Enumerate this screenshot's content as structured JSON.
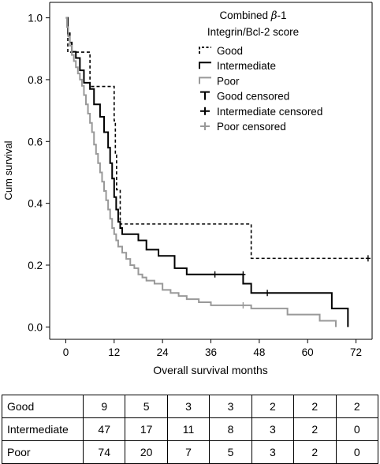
{
  "chart_data": {
    "type": "line",
    "subtype": "kaplan-meier step",
    "xlabel": "Overall survival months",
    "ylabel": "Cum survival",
    "xlim": [
      -4,
      76
    ],
    "ylim": [
      -0.04,
      1.05
    ],
    "xticks": [
      0,
      12,
      24,
      36,
      48,
      60,
      72
    ],
    "yticks": [
      0.0,
      0.2,
      0.4,
      0.6,
      0.8,
      1.0
    ],
    "ytick_labels": [
      "0.0",
      "0.2",
      "0.4",
      "0.6",
      "0.8",
      "1.0"
    ],
    "grid": false,
    "legend": {
      "placement": "top-right",
      "title": "Combined β-1 Integrin/Bcl-2 score",
      "title_prefix": "Combined ",
      "title_symbol": "β",
      "title_suffix": "-1",
      "title_line2": "Integrin/Bcl-2 score",
      "entries": [
        {
          "label": "Good",
          "color": "#000000",
          "style": "dashed",
          "kind": "line"
        },
        {
          "label": "Intermediate",
          "color": "#000000",
          "style": "solid",
          "kind": "line"
        },
        {
          "label": "Poor",
          "color": "#999999",
          "style": "solid",
          "kind": "line"
        },
        {
          "label": "Good censored",
          "color": "#000000",
          "kind": "censor"
        },
        {
          "label": "Intermediate censored",
          "color": "#000000",
          "kind": "censor"
        },
        {
          "label": "Poor censored",
          "color": "#999999",
          "kind": "censor"
        }
      ]
    },
    "series": [
      {
        "name": "Good",
        "color": "#000000",
        "style": "dashed",
        "steps": [
          [
            0,
            1.0
          ],
          [
            0.5,
            0.889
          ],
          [
            6,
            0.778
          ],
          [
            12,
            0.667
          ],
          [
            12.3,
            0.556
          ],
          [
            12.6,
            0.444
          ],
          [
            13.5,
            0.333
          ],
          [
            46,
            0.222
          ],
          [
            75,
            0.222
          ]
        ],
        "censored": [
          [
            75,
            0.222
          ]
        ]
      },
      {
        "name": "Intermediate",
        "color": "#000000",
        "style": "solid",
        "steps": [
          [
            0,
            1.0
          ],
          [
            0.5,
            0.95
          ],
          [
            1,
            0.92
          ],
          [
            1.5,
            0.89
          ],
          [
            2.5,
            0.87
          ],
          [
            3.5,
            0.83
          ],
          [
            4.5,
            0.79
          ],
          [
            6,
            0.77
          ],
          [
            7,
            0.72
          ],
          [
            8.5,
            0.68
          ],
          [
            9.5,
            0.63
          ],
          [
            10.5,
            0.58
          ],
          [
            11,
            0.53
          ],
          [
            11.5,
            0.48
          ],
          [
            12,
            0.42
          ],
          [
            12.5,
            0.38
          ],
          [
            13,
            0.34
          ],
          [
            13.5,
            0.32
          ],
          [
            14,
            0.3
          ],
          [
            18,
            0.28
          ],
          [
            20,
            0.25
          ],
          [
            23,
            0.23
          ],
          [
            27,
            0.19
          ],
          [
            30,
            0.17
          ],
          [
            44,
            0.14
          ],
          [
            46,
            0.11
          ],
          [
            66,
            0.06
          ],
          [
            70,
            0.0
          ]
        ],
        "end": 70,
        "censored": [
          [
            37,
            0.17
          ],
          [
            44,
            0.17
          ],
          [
            50,
            0.11
          ]
        ]
      },
      {
        "name": "Poor",
        "color": "#999999",
        "style": "solid",
        "steps": [
          [
            0,
            1.0
          ],
          [
            0.3,
            0.97
          ],
          [
            0.6,
            0.94
          ],
          [
            1,
            0.91
          ],
          [
            1.5,
            0.88
          ],
          [
            2,
            0.86
          ],
          [
            2.5,
            0.84
          ],
          [
            3,
            0.82
          ],
          [
            3.5,
            0.8
          ],
          [
            4,
            0.78
          ],
          [
            4.5,
            0.75
          ],
          [
            5,
            0.72
          ],
          [
            5.5,
            0.69
          ],
          [
            6,
            0.66
          ],
          [
            6.5,
            0.63
          ],
          [
            7,
            0.59
          ],
          [
            7.5,
            0.56
          ],
          [
            8,
            0.53
          ],
          [
            8.5,
            0.5
          ],
          [
            9,
            0.47
          ],
          [
            9.5,
            0.44
          ],
          [
            10,
            0.41
          ],
          [
            10.5,
            0.38
          ],
          [
            11,
            0.35
          ],
          [
            11.5,
            0.32
          ],
          [
            12,
            0.3
          ],
          [
            12.5,
            0.28
          ],
          [
            13,
            0.26
          ],
          [
            14,
            0.24
          ],
          [
            15,
            0.22
          ],
          [
            16,
            0.2
          ],
          [
            17,
            0.19
          ],
          [
            18,
            0.17
          ],
          [
            19,
            0.16
          ],
          [
            20,
            0.15
          ],
          [
            22,
            0.14
          ],
          [
            24,
            0.12
          ],
          [
            26,
            0.11
          ],
          [
            28,
            0.1
          ],
          [
            30,
            0.09
          ],
          [
            33,
            0.08
          ],
          [
            36,
            0.07
          ],
          [
            46,
            0.06
          ],
          [
            55,
            0.04
          ],
          [
            63,
            0.02
          ],
          [
            67,
            0.0
          ]
        ],
        "end": 67,
        "censored": [
          [
            44,
            0.07
          ]
        ]
      }
    ]
  },
  "risk_table": {
    "rows": [
      {
        "label": "Good",
        "values": [
          "9",
          "5",
          "3",
          "3",
          "2",
          "2",
          "2"
        ]
      },
      {
        "label": "Intermediate",
        "values": [
          "47",
          "17",
          "11",
          "8",
          "3",
          "2",
          "0"
        ]
      },
      {
        "label": "Poor",
        "values": [
          "74",
          "20",
          "7",
          "5",
          "3",
          "2",
          "0"
        ]
      }
    ]
  }
}
